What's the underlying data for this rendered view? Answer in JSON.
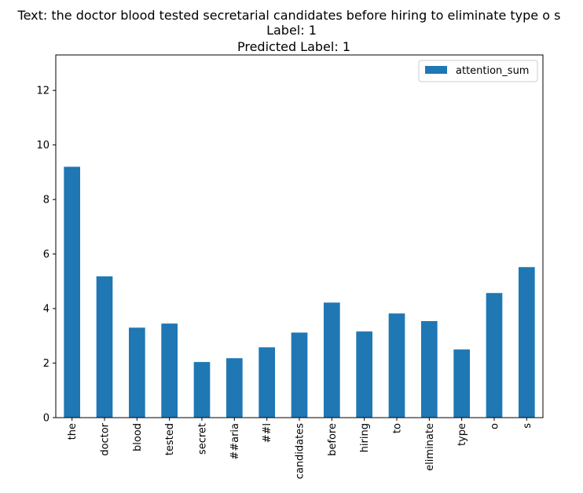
{
  "chart_data": {
    "type": "bar",
    "title_lines": [
      "Text: the doctor blood tested secretarial candidates before hiring to eliminate type o s",
      "Label: 1",
      "Predicted Label: 1"
    ],
    "xlabel": "",
    "ylabel": "",
    "categories": [
      "the",
      "doctor",
      "blood",
      "tested",
      "secret",
      "##aria",
      "##l",
      "candidates",
      "before",
      "hiring",
      "to",
      "eliminate",
      "type",
      "o",
      "s"
    ],
    "series": [
      {
        "name": "attention_sum",
        "color": "#1f77b4",
        "values": [
          9.2,
          5.18,
          3.3,
          3.45,
          2.04,
          2.18,
          2.58,
          3.12,
          4.22,
          3.16,
          3.82,
          3.54,
          2.5,
          4.57,
          5.52
        ]
      }
    ],
    "ylim": [
      0,
      13.3
    ],
    "yticks": [
      0,
      2,
      4,
      6,
      8,
      10,
      12
    ],
    "grid": false,
    "legend_position": "top-right"
  }
}
